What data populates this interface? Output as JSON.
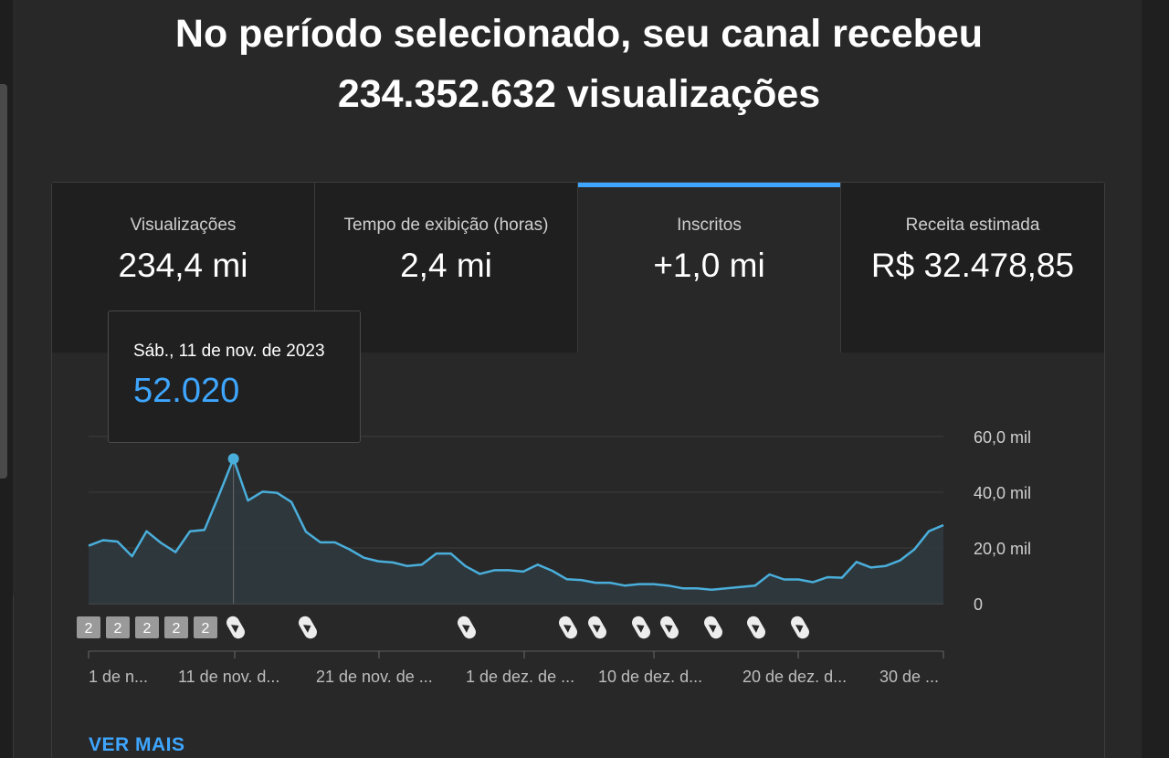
{
  "headline": {
    "line1": "No período selecionado, seu canal recebeu",
    "line2": "234.352.632 visualizações"
  },
  "tabs": [
    {
      "label": "Visualizações",
      "value": "234,4 mi"
    },
    {
      "label": "Tempo de exibição (horas)",
      "value": "2,4 mi"
    },
    {
      "label": "Inscritos",
      "value": "+1,0 mi"
    },
    {
      "label": "Receita estimada",
      "value": "R$ 32.478,85"
    }
  ],
  "active_tab": "Inscritos",
  "tooltip": {
    "date": "Sáb., 11 de nov. de 2023",
    "value": "52.020"
  },
  "ver_mais": "VER MAIS",
  "colors": {
    "accent": "#3ea6ff",
    "line": "#4aaedb",
    "background": "#282828"
  },
  "chart_data": {
    "type": "area",
    "y_axis": {
      "ticks": [
        "60,0 mil",
        "40,0 mil",
        "20,0 mil",
        "0"
      ],
      "values": [
        60000,
        40000,
        20000,
        0
      ],
      "ylim": [
        0,
        60000
      ],
      "position": "right"
    },
    "x_tick_labels": [
      "1 de n...",
      "11 de nov. d...",
      "21 de nov. de ...",
      "1 de dez. de ...",
      "10 de dez. d...",
      "20 de dez. d...",
      "30 de ..."
    ],
    "grid": true,
    "highlight": {
      "index": 10,
      "date": "Sáb., 11 de nov. de 2023",
      "value": 52020
    },
    "values": [
      20800,
      22800,
      22300,
      17000,
      26000,
      21800,
      18500,
      26000,
      26500,
      39000,
      52020,
      37000,
      40200,
      39800,
      36500,
      25800,
      22000,
      22000,
      19500,
      16500,
      15200,
      14800,
      13500,
      14000,
      18000,
      18000,
      13500,
      10700,
      12000,
      12000,
      11500,
      14000,
      11800,
      8800,
      8500,
      7500,
      7500,
      6500,
      7000,
      7000,
      6500,
      5500,
      5500,
      5000,
      5500,
      6000,
      6500,
      10500,
      8700,
      8700,
      7700,
      9500,
      9300,
      15000,
      13000,
      13500,
      15500,
      19500,
      26000,
      28200
    ],
    "markers": [
      {
        "type": "badge",
        "text": "2"
      },
      {
        "type": "badge",
        "text": "2"
      },
      {
        "type": "badge",
        "text": "2"
      },
      {
        "type": "badge",
        "text": "2"
      },
      {
        "type": "badge",
        "text": "2"
      },
      {
        "type": "shorts"
      },
      {
        "type": "shorts"
      },
      {
        "type": "shorts"
      },
      {
        "type": "shorts"
      },
      {
        "type": "shorts"
      },
      {
        "type": "shorts"
      },
      {
        "type": "shorts"
      },
      {
        "type": "shorts"
      },
      {
        "type": "shorts"
      },
      {
        "type": "shorts"
      }
    ]
  }
}
